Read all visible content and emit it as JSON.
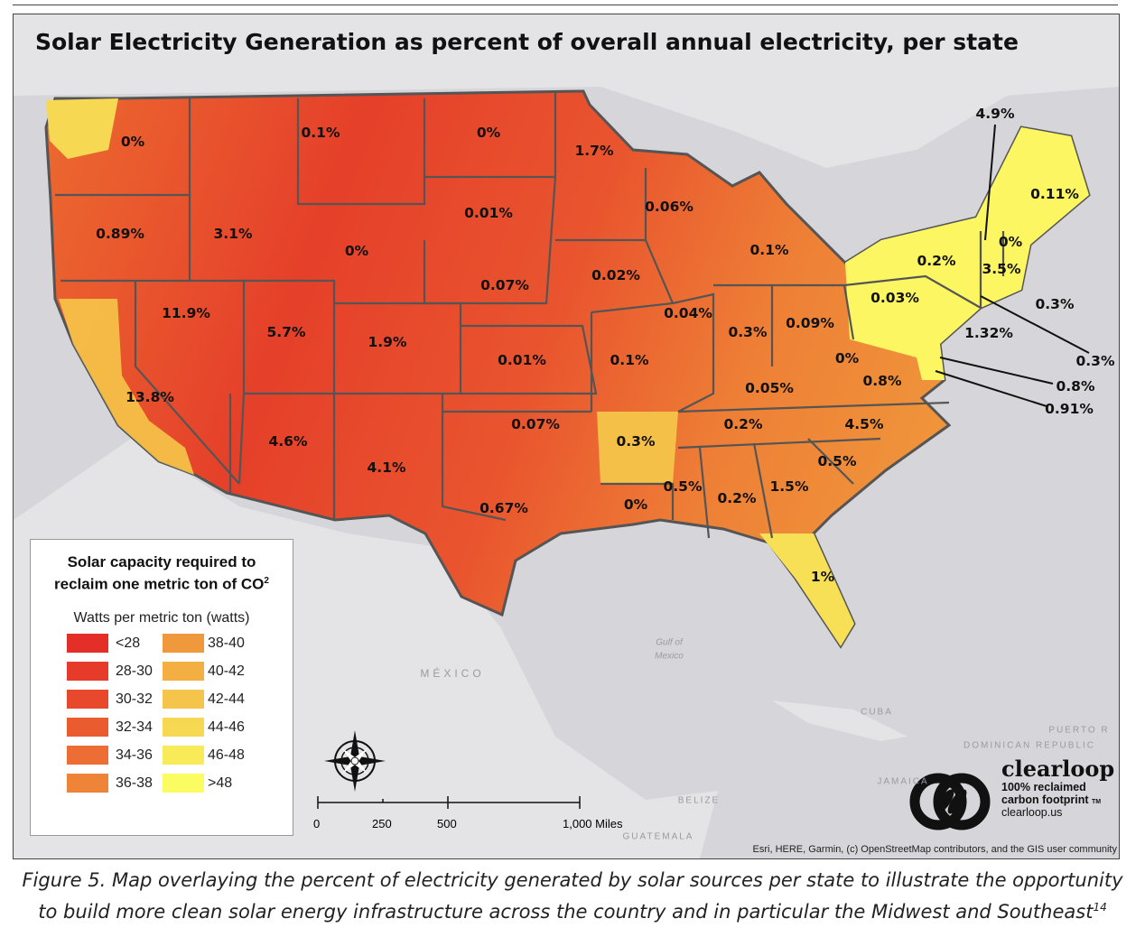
{
  "title": "Solar Electricity Generation as percent of overall annual electricity,  per state",
  "state_labels": [
    "0%",
    "0.1%",
    "0%",
    "1.7%",
    "0.89%",
    "3.1%",
    "0.01%",
    "0.06%",
    "0%",
    "0.1%",
    "0.02%",
    "0.07%",
    "11.9%",
    "5.7%",
    "1.9%",
    "0.04%",
    "0.3%",
    "0.09%",
    "0.01%",
    "0.1%",
    "13.8%",
    "0%",
    "0.8%",
    "0.05%",
    "4.6%",
    "0.07%",
    "0.3%",
    "0.2%",
    "4.5%",
    "4.1%",
    "0.5%",
    "0.5%",
    "0.2%",
    "1.5%",
    "0%",
    "0.67%",
    "1%",
    "4.9%",
    "0.11%",
    "0%",
    "0.2%",
    "3.5%",
    "0.03%",
    "0.3%",
    "1.32%",
    "0.3%",
    "0.8%",
    "0.91%"
  ],
  "geo_labels": {
    "mexico": "MÉXICO",
    "gulf1": "Gulf of",
    "gulf2": "Mexico",
    "cuba": "CUBA",
    "belize": "BELIZE",
    "guatemala": "GUATEMALA",
    "jamaica": "JAMAICA",
    "dominican": "DOMINICAN REPUBLIC",
    "puerto": "PUERTO R"
  },
  "legend": {
    "title_line1": "Solar capacity required to",
    "title_line2": "reclaim one metric ton of CO",
    "title_sup": "2",
    "subtitle": "Watts per metric ton (watts)",
    "items": [
      {
        "label": "<28",
        "color": "#e42f28"
      },
      {
        "label": "28-30",
        "color": "#e63a2a"
      },
      {
        "label": "30-32",
        "color": "#e8492d"
      },
      {
        "label": "32-34",
        "color": "#ea5b30"
      },
      {
        "label": "34-36",
        "color": "#ec6e34"
      },
      {
        "label": "36-38",
        "color": "#ee8438"
      },
      {
        "label": "38-40",
        "color": "#f0993c"
      },
      {
        "label": "40-42",
        "color": "#f3af42"
      },
      {
        "label": "42-44",
        "color": "#f5c44a"
      },
      {
        "label": "44-46",
        "color": "#f7d852"
      },
      {
        "label": "46-48",
        "color": "#f9ea58"
      },
      {
        "label": ">48",
        "color": "#fbfb62"
      }
    ]
  },
  "scale": {
    "t0": "0",
    "t1": "250",
    "t2": "500",
    "t3": "1,000 Miles"
  },
  "attribution": "Esri, HERE, Garmin, (c) OpenStreetMap contributors, and the GIS user community",
  "logo": {
    "name": "clearloop",
    "line1": "100% reclaimed",
    "line2": "carbon footprint",
    "tm": "TM",
    "url": "clearloop.us"
  },
  "caption": {
    "line1": "Figure 5. Map overlaying the percent of electricity generated by solar sources per state to illustrate the opportunity",
    "line2": "to build more clean solar energy infrastructure across the country and in particular the Midwest and Southeast",
    "sup": "14"
  }
}
